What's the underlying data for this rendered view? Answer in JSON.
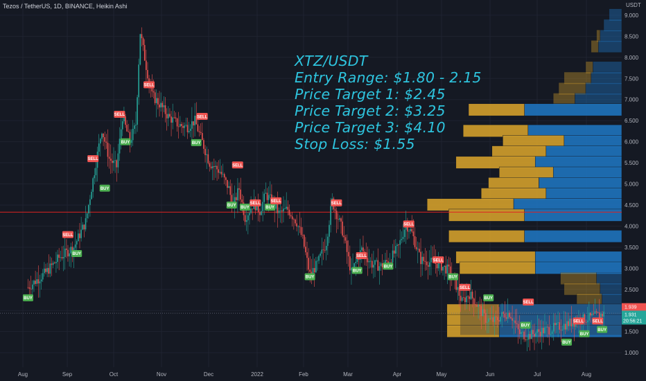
{
  "header": {
    "symbol_text": "Tezos / TetherUS, 1D, BINANCE, Heikin Ashi"
  },
  "annotation": {
    "lines": [
      "XTZ/USDT",
      "Entry Range: $1.80 - 2.15",
      "Price Target 1: $2.45",
      "Price Target 2: $3.25",
      "Price Target 3: $4.10",
      "Stop Loss: $1.55"
    ]
  },
  "price_labels": {
    "last_red": "1.939",
    "last_green": "1.931",
    "countdown": "20:56:21"
  },
  "colors": {
    "background": "#151923",
    "up": "#26a69a",
    "down": "#ef5350",
    "buy": "#4caf50",
    "sell": "#ef5350",
    "annotation": "#2ec4de",
    "vp_up": "#1e6fb5",
    "vp_down": "#c9982b",
    "support_line": "#e02222"
  },
  "chart_data": {
    "type": "candlestick",
    "title": "Tezos / TetherUS, 1D, BINANCE, Heikin Ashi",
    "y_axis": {
      "unit": "USDT",
      "range": [
        0.75,
        9.35
      ],
      "ticks": [
        "9.000",
        "8.500",
        "8.000",
        "7.500",
        "7.000",
        "6.500",
        "6.000",
        "5.500",
        "5.000",
        "4.500",
        "4.000",
        "3.500",
        "3.000",
        "2.500",
        "2.000",
        "1.500",
        "1.000"
      ]
    },
    "x_axis": {
      "ticks": [
        "Aug",
        "Sep",
        "Oct",
        "Nov",
        "Dec",
        "2022",
        "Feb",
        "Mar",
        "Apr",
        "May",
        "Jun",
        "Jul",
        "Aug"
      ]
    },
    "close_series": [
      [
        "2021-07-20",
        2.55
      ],
      [
        "2021-08-01",
        2.9
      ],
      [
        "2021-08-10",
        3.25
      ],
      [
        "2021-08-20",
        3.5
      ],
      [
        "2021-08-28",
        4.1
      ],
      [
        "2021-09-03",
        5.3
      ],
      [
        "2021-09-08",
        6.3
      ],
      [
        "2021-09-13",
        5.6
      ],
      [
        "2021-09-18",
        5.4
      ],
      [
        "2021-09-22",
        6.6
      ],
      [
        "2021-09-27",
        6.0
      ],
      [
        "2021-10-01",
        6.4
      ],
      [
        "2021-10-04",
        8.6
      ],
      [
        "2021-10-08",
        7.8
      ],
      [
        "2021-10-12",
        7.1
      ],
      [
        "2021-10-17",
        6.9
      ],
      [
        "2021-10-23",
        6.6
      ],
      [
        "2021-10-30",
        6.4
      ],
      [
        "2021-11-05",
        6.35
      ],
      [
        "2021-11-10",
        6.5
      ],
      [
        "2021-11-15",
        6.0
      ],
      [
        "2021-11-20",
        5.5
      ],
      [
        "2021-11-27",
        5.3
      ],
      [
        "2021-12-03",
        4.9
      ],
      [
        "2021-12-06",
        4.45
      ],
      [
        "2021-12-10",
        4.9
      ],
      [
        "2021-12-14",
        4.2
      ],
      [
        "2021-12-20",
        4.55
      ],
      [
        "2021-12-24",
        4.35
      ],
      [
        "2021-12-28",
        4.75
      ],
      [
        "2022-01-01",
        4.6
      ],
      [
        "2022-01-06",
        4.3
      ],
      [
        "2022-01-12",
        4.4
      ],
      [
        "2022-01-18",
        4.1
      ],
      [
        "2022-01-22",
        3.7
      ],
      [
        "2022-01-27",
        2.85
      ],
      [
        "2022-02-01",
        3.1
      ],
      [
        "2022-02-07",
        3.6
      ],
      [
        "2022-02-11",
        4.6
      ],
      [
        "2022-02-18",
        3.9
      ],
      [
        "2022-02-24",
        2.9
      ],
      [
        "2022-02-28",
        3.2
      ],
      [
        "2022-03-03",
        3.45
      ],
      [
        "2022-03-10",
        3.1
      ],
      [
        "2022-03-16",
        3.05
      ],
      [
        "2022-03-22",
        3.2
      ],
      [
        "2022-03-28",
        3.5
      ],
      [
        "2022-04-02",
        4.05
      ],
      [
        "2022-04-06",
        3.85
      ],
      [
        "2022-04-12",
        3.2
      ],
      [
        "2022-04-18",
        3.15
      ],
      [
        "2022-04-24",
        3.1
      ],
      [
        "2022-05-01",
        2.95
      ],
      [
        "2022-05-06",
        2.6
      ],
      [
        "2022-05-10",
        2.2
      ],
      [
        "2022-05-15",
        2.4
      ],
      [
        "2022-05-20",
        2.15
      ],
      [
        "2022-05-26",
        1.8
      ],
      [
        "2022-06-01",
        1.75
      ],
      [
        "2022-06-07",
        1.9
      ],
      [
        "2022-06-11",
        1.95
      ],
      [
        "2022-06-13",
        1.85
      ],
      [
        "2022-06-18",
        1.45
      ],
      [
        "2022-06-24",
        1.4
      ],
      [
        "2022-07-01",
        1.5
      ],
      [
        "2022-07-08",
        1.55
      ],
      [
        "2022-07-15",
        1.62
      ],
      [
        "2022-07-22",
        1.7
      ],
      [
        "2022-07-30",
        1.78
      ],
      [
        "2022-08-07",
        1.85
      ],
      [
        "2022-08-15",
        1.93
      ]
    ],
    "signals": [
      {
        "label": "BUY",
        "date": "2021-07-20",
        "price": 2.3
      },
      {
        "label": "SELL",
        "date": "2021-08-16",
        "price": 3.8
      },
      {
        "label": "BUY",
        "date": "2021-08-22",
        "price": 3.35
      },
      {
        "label": "SELL",
        "date": "2021-09-02",
        "price": 5.6
      },
      {
        "label": "BUY",
        "date": "2021-09-10",
        "price": 4.9
      },
      {
        "label": "SELL",
        "date": "2021-09-20",
        "price": 6.65
      },
      {
        "label": "BUY",
        "date": "2021-09-24",
        "price": 6.0
      },
      {
        "label": "SELL",
        "date": "2021-10-10",
        "price": 7.35
      },
      {
        "label": "BUY",
        "date": "2021-11-11",
        "price": 5.98
      },
      {
        "label": "SELL",
        "date": "2021-11-15",
        "price": 6.6
      },
      {
        "label": "BUY",
        "date": "2021-12-05",
        "price": 4.5
      },
      {
        "label": "SELL",
        "date": "2021-12-09",
        "price": 5.45
      },
      {
        "label": "BUY",
        "date": "2021-12-14",
        "price": 4.45
      },
      {
        "label": "SELL",
        "date": "2021-12-21",
        "price": 4.55
      },
      {
        "label": "BUY",
        "date": "2021-12-31",
        "price": 4.45
      },
      {
        "label": "SELL",
        "date": "2022-01-04",
        "price": 4.6
      },
      {
        "label": "BUY",
        "date": "2022-01-27",
        "price": 2.8
      },
      {
        "label": "SELL",
        "date": "2022-02-14",
        "price": 4.55
      },
      {
        "label": "BUY",
        "date": "2022-02-28",
        "price": 2.95
      },
      {
        "label": "SELL",
        "date": "2022-03-03",
        "price": 3.3
      },
      {
        "label": "BUY",
        "date": "2022-03-21",
        "price": 3.05
      },
      {
        "label": "SELL",
        "date": "2022-04-04",
        "price": 4.05
      },
      {
        "label": "SELL",
        "date": "2022-04-24",
        "price": 3.2
      },
      {
        "label": "BUY",
        "date": "2022-05-04",
        "price": 2.8
      },
      {
        "label": "SELL",
        "date": "2022-05-12",
        "price": 2.55
      },
      {
        "label": "BUY",
        "date": "2022-05-28",
        "price": 2.3
      },
      {
        "label": "BUY",
        "date": "2022-06-22",
        "price": 1.65
      },
      {
        "label": "SELL",
        "date": "2022-06-24",
        "price": 2.2
      },
      {
        "label": "BUY",
        "date": "2022-07-20",
        "price": 1.25
      },
      {
        "label": "SELL",
        "date": "2022-07-28",
        "price": 1.75
      },
      {
        "label": "BUY",
        "date": "2022-08-01",
        "price": 1.45
      },
      {
        "label": "SELL",
        "date": "2022-08-10",
        "price": 1.75
      },
      {
        "label": "BUY",
        "date": "2022-08-13",
        "price": 1.55
      }
    ],
    "support_line": 4.33,
    "volume_profile": [
      {
        "price": 9.0,
        "up": 0.07,
        "down": 0.0
      },
      {
        "price": 8.75,
        "up": 0.1,
        "down": 0.0
      },
      {
        "price": 8.5,
        "up": 0.12,
        "down": 0.02
      },
      {
        "price": 8.25,
        "up": 0.13,
        "down": 0.04
      },
      {
        "price": 7.75,
        "up": 0.16,
        "down": 0.04
      },
      {
        "price": 7.5,
        "up": 0.17,
        "down": 0.15
      },
      {
        "price": 7.25,
        "up": 0.2,
        "down": 0.15
      },
      {
        "price": 7.0,
        "up": 0.26,
        "down": 0.12
      },
      {
        "price": 6.75,
        "up": 0.54,
        "down": 0.31
      },
      {
        "price": 6.25,
        "up": 0.52,
        "down": 0.36
      },
      {
        "price": 6.0,
        "up": 0.32,
        "down": 0.34
      },
      {
        "price": 5.75,
        "up": 0.42,
        "down": 0.3
      },
      {
        "price": 5.5,
        "up": 0.48,
        "down": 0.44
      },
      {
        "price": 5.25,
        "up": 0.38,
        "down": 0.3
      },
      {
        "price": 5.0,
        "up": 0.46,
        "down": 0.28
      },
      {
        "price": 4.75,
        "up": 0.42,
        "down": 0.36
      },
      {
        "price": 4.5,
        "up": 0.6,
        "down": 0.48
      },
      {
        "price": 4.25,
        "up": 0.54,
        "down": 0.42
      },
      {
        "price": 3.75,
        "up": 0.54,
        "down": 0.42
      },
      {
        "price": 3.25,
        "up": 0.48,
        "down": 0.44
      },
      {
        "price": 3.0,
        "up": 0.48,
        "down": 0.42
      },
      {
        "price": 2.75,
        "up": 0.14,
        "down": 0.2
      },
      {
        "price": 2.5,
        "up": 0.12,
        "down": 0.2
      },
      {
        "price": 2.25,
        "up": 0.11,
        "down": 0.14
      },
      {
        "price": 2.0,
        "up": 0.68,
        "down": 0.29
      },
      {
        "price": 1.75,
        "up": 0.68,
        "down": 0.29
      },
      {
        "price": 1.5,
        "up": 0.68,
        "down": 0.29
      }
    ]
  }
}
